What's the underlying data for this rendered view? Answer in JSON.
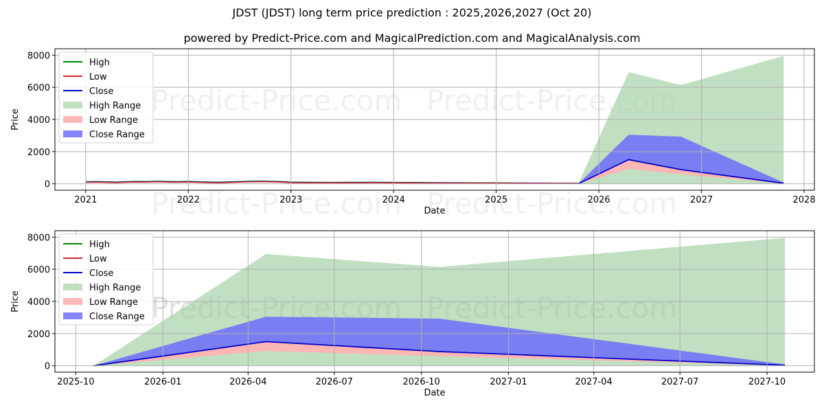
{
  "title": "JDST (JDST) long term price prediction : 2025,2026,2027 (Oct 20)",
  "subtitle": "powered by Predict-Price.com and MagicalPrediction.com and MagicalAnalysis.com",
  "watermark": "Predict-Price.com",
  "colors": {
    "high": "#008000",
    "low": "#d62728",
    "close": "#0000cc",
    "high_range": "#9fd09f",
    "low_range": "#ffb3b3",
    "close_range": "#6666ff",
    "grid": "#b0b0b0"
  },
  "legend": [
    "High",
    "Low",
    "Close",
    "High Range",
    "Low Range",
    "Close Range"
  ],
  "chart_data": [
    {
      "type": "line",
      "xlabel": "Date",
      "ylabel": "Price",
      "xlim": [
        2020.7,
        2028.1
      ],
      "ylim": [
        -400,
        8400
      ],
      "xticks": [
        2021,
        2022,
        2023,
        2024,
        2025,
        2026,
        2027,
        2028
      ],
      "xtick_labels": [
        "2021",
        "2022",
        "2023",
        "2024",
        "2025",
        "2026",
        "2027",
        "2028"
      ],
      "yticks": [
        0,
        2000,
        4000,
        6000,
        8000
      ],
      "ytick_labels": [
        "0",
        "2000",
        "4000",
        "6000",
        "8000"
      ],
      "historical": {
        "x": [
          2021.0,
          2021.1,
          2021.2,
          2021.3,
          2021.4,
          2021.5,
          2021.6,
          2021.7,
          2021.8,
          2021.9,
          2022.0,
          2022.1,
          2022.2,
          2022.3,
          2022.4,
          2022.5,
          2022.6,
          2022.7,
          2022.8,
          2022.9,
          2023.0,
          2023.2,
          2023.4,
          2023.6,
          2023.8,
          2024.0,
          2024.2,
          2024.4,
          2024.6,
          2024.8,
          2025.0,
          2025.2,
          2025.4,
          2025.6,
          2025.8
        ],
        "high": [
          130,
          140,
          125,
          110,
          135,
          150,
          140,
          160,
          145,
          135,
          150,
          130,
          110,
          95,
          120,
          140,
          160,
          170,
          155,
          140,
          100,
          90,
          85,
          90,
          95,
          85,
          80,
          70,
          65,
          60,
          55,
          50,
          45,
          40,
          35
        ],
        "low": [
          90,
          100,
          85,
          70,
          95,
          110,
          100,
          120,
          105,
          95,
          110,
          90,
          70,
          60,
          80,
          100,
          120,
          130,
          115,
          100,
          65,
          60,
          55,
          60,
          65,
          55,
          50,
          45,
          40,
          35,
          30,
          28,
          25,
          22,
          20
        ],
        "close": [
          110,
          120,
          105,
          90,
          115,
          130,
          120,
          140,
          125,
          115,
          130,
          110,
          90,
          78,
          100,
          120,
          140,
          150,
          135,
          120,
          82,
          75,
          70,
          75,
          80,
          70,
          65,
          58,
          52,
          48,
          42,
          38,
          35,
          31,
          27
        ]
      },
      "forecast": {
        "x": [
          2025.8,
          2026.29,
          2026.8,
          2027.8
        ],
        "high_range_upper": [
          0,
          6950,
          6150,
          7950
        ],
        "close_range": {
          "lower": [
            0,
            1500,
            880,
            30
          ],
          "upper": [
            0,
            3050,
            2930,
            80
          ]
        },
        "low_range": {
          "lower": [
            0,
            920,
            590,
            20
          ],
          "upper": [
            0,
            1500,
            880,
            30
          ]
        },
        "close": [
          0,
          1500,
          880,
          30
        ]
      }
    },
    {
      "type": "line",
      "xlabel": "Date",
      "ylabel": "Price",
      "xlim": [
        "2025-09-09",
        "2027-11-20"
      ],
      "ylim": [
        -400,
        8400
      ],
      "xticks": [
        "2025-10",
        "2026-01",
        "2026-04",
        "2026-07",
        "2026-10",
        "2027-01",
        "2027-04",
        "2027-07",
        "2027-10"
      ],
      "yticks": [
        0,
        2000,
        4000,
        6000,
        8000
      ],
      "ytick_labels": [
        "0",
        "2000",
        "4000",
        "6000",
        "8000"
      ],
      "forecast": {
        "x": [
          "2025-10-20",
          "2026-04-20",
          "2026-10-20",
          "2027-10-20"
        ],
        "high_range_upper": [
          0,
          6950,
          6150,
          7950
        ],
        "close_range": {
          "lower": [
            0,
            1500,
            880,
            30
          ],
          "upper": [
            0,
            3050,
            2930,
            80
          ]
        },
        "low_range": {
          "lower": [
            0,
            920,
            590,
            20
          ],
          "upper": [
            0,
            1500,
            880,
            30
          ]
        },
        "close": [
          0,
          1500,
          880,
          30
        ]
      }
    }
  ]
}
